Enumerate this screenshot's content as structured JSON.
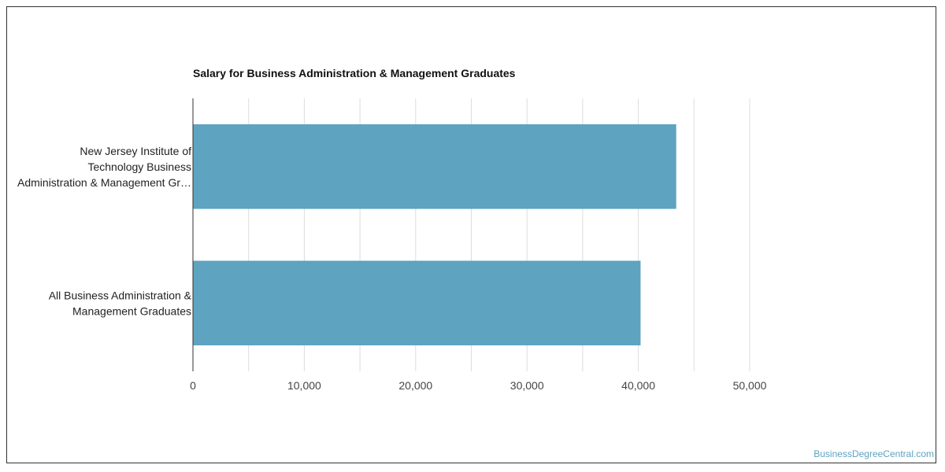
{
  "chart_data": {
    "type": "bar",
    "orientation": "horizontal",
    "title": "Salary for Business Administration & Management Graduates",
    "categories": [
      [
        "New Jersey Institute of",
        "Technology Business",
        "Administration & Management Gr…"
      ],
      [
        "All Business Administration &",
        "Management Graduates"
      ]
    ],
    "values": [
      43400,
      40200
    ],
    "xlim": [
      0,
      50000
    ],
    "ticks": [
      0,
      10000,
      20000,
      30000,
      40000,
      50000
    ],
    "tick_labels": [
      "0",
      "10,000",
      "20,000",
      "30,000",
      "40,000",
      "50,000"
    ],
    "grid": true,
    "bar_color": "#5ea3c0"
  },
  "watermark": "BusinessDegreeCentral.com"
}
